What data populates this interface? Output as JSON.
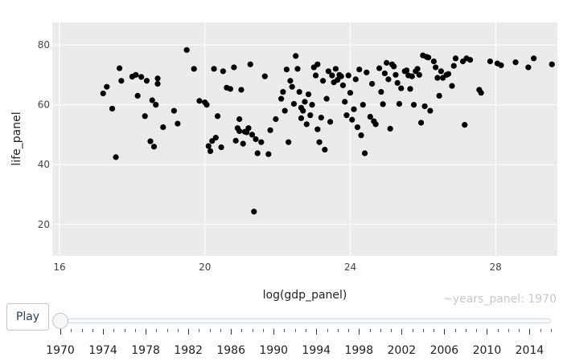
{
  "chart_data": {
    "type": "scatter",
    "title": "",
    "xlabel": "log(gdp_panel)",
    "ylabel": "life_panel",
    "xlim": [
      15.8,
      29.7
    ],
    "ylim": [
      9.5,
      87.5
    ],
    "xticks": [
      16,
      20,
      24,
      28
    ],
    "yticks": [
      20,
      40,
      60,
      80
    ],
    "grid": true,
    "marker_color": "#000000",
    "background_color": "#ebebeb",
    "gridline_color": "#ffffff",
    "points": [
      [
        17.2,
        63.8
      ],
      [
        17.3,
        66.0
      ],
      [
        17.45,
        58.7
      ],
      [
        17.55,
        42.5
      ],
      [
        17.65,
        72.2
      ],
      [
        17.7,
        68.0
      ],
      [
        18.0,
        69.4
      ],
      [
        18.1,
        70.0
      ],
      [
        18.15,
        63.0
      ],
      [
        18.25,
        69.3
      ],
      [
        18.35,
        56.2
      ],
      [
        18.4,
        68.0
      ],
      [
        18.5,
        47.8
      ],
      [
        18.55,
        61.5
      ],
      [
        18.6,
        46.0
      ],
      [
        18.65,
        60.0
      ],
      [
        18.7,
        68.8
      ],
      [
        18.7,
        67.0
      ],
      [
        18.85,
        52.5
      ],
      [
        19.15,
        58.0
      ],
      [
        19.25,
        53.7
      ],
      [
        19.5,
        78.3
      ],
      [
        19.7,
        72.0
      ],
      [
        19.85,
        61.3
      ],
      [
        20.0,
        60.8
      ],
      [
        20.05,
        60.0
      ],
      [
        20.1,
        46.2
      ],
      [
        20.15,
        44.5
      ],
      [
        20.2,
        47.9
      ],
      [
        20.25,
        72.0
      ],
      [
        20.3,
        49.0
      ],
      [
        20.35,
        56.2
      ],
      [
        20.45,
        45.8
      ],
      [
        20.5,
        71.2
      ],
      [
        20.6,
        65.7
      ],
      [
        20.7,
        65.3
      ],
      [
        20.8,
        72.5
      ],
      [
        20.85,
        48.0
      ],
      [
        20.9,
        52.2
      ],
      [
        20.95,
        55.2
      ],
      [
        20.95,
        51.2
      ],
      [
        21.0,
        65.0
      ],
      [
        21.05,
        47.0
      ],
      [
        21.1,
        51.0
      ],
      [
        21.15,
        50.8
      ],
      [
        21.2,
        52.2
      ],
      [
        21.25,
        73.5
      ],
      [
        21.3,
        50.0
      ],
      [
        21.35,
        24.3
      ],
      [
        21.4,
        48.5
      ],
      [
        21.45,
        43.8
      ],
      [
        21.55,
        47.5
      ],
      [
        21.65,
        69.5
      ],
      [
        21.75,
        43.5
      ],
      [
        21.8,
        51.5
      ],
      [
        21.95,
        55.2
      ],
      [
        22.1,
        62.0
      ],
      [
        22.15,
        64.3
      ],
      [
        22.2,
        58.0
      ],
      [
        22.25,
        71.8
      ],
      [
        22.3,
        47.5
      ],
      [
        22.35,
        68.0
      ],
      [
        22.4,
        66.0
      ],
      [
        22.45,
        60.3
      ],
      [
        22.5,
        76.3
      ],
      [
        22.55,
        72.0
      ],
      [
        22.6,
        64.3
      ],
      [
        22.65,
        55.5
      ],
      [
        22.65,
        59.0
      ],
      [
        22.7,
        58.0
      ],
      [
        22.75,
        61.0
      ],
      [
        22.8,
        53.5
      ],
      [
        22.85,
        63.5
      ],
      [
        22.9,
        56.5
      ],
      [
        22.95,
        60.0
      ],
      [
        23.0,
        72.5
      ],
      [
        23.05,
        69.8
      ],
      [
        23.1,
        73.5
      ],
      [
        23.1,
        51.8
      ],
      [
        23.15,
        47.5
      ],
      [
        23.2,
        55.7
      ],
      [
        23.25,
        68.0
      ],
      [
        23.3,
        45.0
      ],
      [
        23.35,
        62.0
      ],
      [
        23.4,
        71.2
      ],
      [
        23.45,
        54.3
      ],
      [
        23.5,
        69.8
      ],
      [
        23.55,
        67.5
      ],
      [
        23.6,
        72.0
      ],
      [
        23.65,
        68.3
      ],
      [
        23.7,
        70.0
      ],
      [
        23.75,
        69.5
      ],
      [
        23.8,
        66.5
      ],
      [
        23.85,
        61.0
      ],
      [
        23.9,
        56.5
      ],
      [
        23.95,
        69.8
      ],
      [
        24.0,
        64.0
      ],
      [
        24.05,
        55.0
      ],
      [
        24.1,
        58.5
      ],
      [
        24.15,
        68.5
      ],
      [
        24.2,
        52.5
      ],
      [
        24.25,
        71.8
      ],
      [
        24.3,
        49.8
      ],
      [
        24.35,
        60.0
      ],
      [
        24.4,
        43.8
      ],
      [
        24.45,
        70.8
      ],
      [
        24.55,
        56.0
      ],
      [
        24.6,
        67.0
      ],
      [
        24.65,
        54.5
      ],
      [
        24.7,
        53.5
      ],
      [
        24.8,
        72.2
      ],
      [
        24.85,
        64.3
      ],
      [
        24.9,
        60.2
      ],
      [
        24.95,
        70.5
      ],
      [
        25.0,
        74.0
      ],
      [
        25.05,
        68.5
      ],
      [
        25.1,
        52.0
      ],
      [
        25.15,
        73.5
      ],
      [
        25.2,
        72.8
      ],
      [
        25.25,
        70.0
      ],
      [
        25.3,
        67.3
      ],
      [
        25.35,
        60.3
      ],
      [
        25.4,
        65.5
      ],
      [
        25.5,
        71.2
      ],
      [
        25.55,
        71.5
      ],
      [
        25.6,
        69.8
      ],
      [
        25.65,
        65.3
      ],
      [
        25.7,
        69.5
      ],
      [
        25.75,
        60.0
      ],
      [
        25.8,
        71.2
      ],
      [
        25.85,
        72.0
      ],
      [
        25.9,
        70.0
      ],
      [
        25.95,
        54.0
      ],
      [
        26.0,
        76.5
      ],
      [
        26.05,
        59.5
      ],
      [
        26.1,
        76.0
      ],
      [
        26.15,
        75.8
      ],
      [
        26.2,
        58.0
      ],
      [
        26.3,
        74.5
      ],
      [
        26.35,
        72.5
      ],
      [
        26.4,
        69.0
      ],
      [
        26.45,
        63.0
      ],
      [
        26.5,
        71.2
      ],
      [
        26.55,
        69.0
      ],
      [
        26.65,
        70.0
      ],
      [
        26.7,
        70.3
      ],
      [
        26.8,
        66.3
      ],
      [
        26.85,
        73.0
      ],
      [
        26.9,
        75.5
      ],
      [
        27.1,
        74.5
      ],
      [
        27.15,
        53.3
      ],
      [
        27.2,
        75.5
      ],
      [
        27.3,
        75.0
      ],
      [
        27.55,
        65.0
      ],
      [
        27.6,
        64.0
      ],
      [
        27.85,
        74.5
      ],
      [
        28.05,
        73.8
      ],
      [
        28.15,
        73.2
      ],
      [
        28.55,
        74.2
      ],
      [
        28.9,
        72.5
      ],
      [
        29.05,
        75.5
      ],
      [
        29.55,
        73.5
      ]
    ]
  },
  "controls": {
    "play_label": "Play",
    "frame_label": "~years_panel: 1970",
    "slider": {
      "min": 1970,
      "max": 2016,
      "current": 1970,
      "labels": [
        "1970",
        "1974",
        "1978",
        "1982",
        "1986",
        "1990",
        "1994",
        "1998",
        "2002",
        "2006",
        "2010",
        "2014"
      ]
    }
  }
}
